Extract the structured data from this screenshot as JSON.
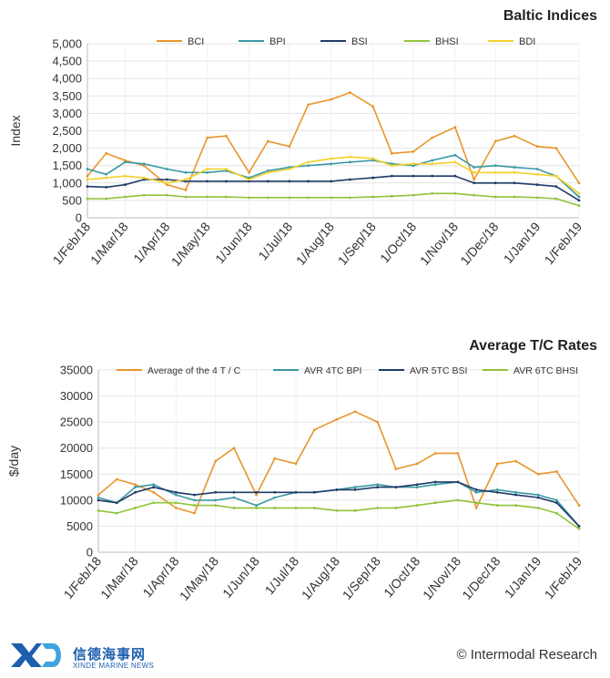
{
  "footer": {
    "logo_cn": "信德海事网",
    "logo_en": "XINDE MARINE NEWS",
    "credit": "© Intermodal Research"
  },
  "chart_data": [
    {
      "type": "line",
      "title": "Baltic Indices",
      "xlabel": "",
      "ylabel": "Index",
      "ylim": [
        0,
        5000
      ],
      "yticks": [
        0,
        500,
        1000,
        1500,
        2000,
        2500,
        3000,
        3500,
        4000,
        4500,
        5000
      ],
      "ytick_labels": [
        "0",
        "500",
        "1,000",
        "1,500",
        "2,000",
        "2,500",
        "3,000",
        "3,500",
        "4,000",
        "4,500",
        "5,000"
      ],
      "x": [
        "1/Feb/18",
        "15/Feb/18",
        "1/Mar/18",
        "15/Mar/18",
        "1/Apr/18",
        "15/Apr/18",
        "1/May/18",
        "15/May/18",
        "1/Jun/18",
        "15/Jun/18",
        "1/Jul/18",
        "15/Jul/18",
        "1/Aug/18",
        "15/Aug/18",
        "1/Sep/18",
        "15/Sep/18",
        "1/Oct/18",
        "15/Oct/18",
        "1/Nov/18",
        "15/Nov/18",
        "1/Dec/18",
        "15/Dec/18",
        "1/Jan/19",
        "15/Jan/19",
        "1/Feb/19"
      ],
      "xtick_labels": [
        "1/Feb/18",
        "1/Mar/18",
        "1/Apr/18",
        "1/May/18",
        "1/Jun/18",
        "1/Jul/18",
        "1/Aug/18",
        "1/Sep/18",
        "1/Oct/18",
        "1/Nov/18",
        "1/Dec/18",
        "1/Jan/19",
        "1/Feb/19"
      ],
      "legend_position": "top",
      "grid": true,
      "series": [
        {
          "name": "BCI",
          "color": "#e8952b",
          "values": [
            1200,
            1850,
            1650,
            1500,
            950,
            800,
            2300,
            2350,
            1300,
            2200,
            2050,
            3250,
            3400,
            3600,
            3200,
            1850,
            1900,
            2300,
            2600,
            1100,
            2200,
            2350,
            2050,
            2000,
            1000
          ]
        },
        {
          "name": "BPI",
          "color": "#3a99a5",
          "values": [
            1400,
            1250,
            1600,
            1550,
            1400,
            1300,
            1300,
            1350,
            1150,
            1350,
            1450,
            1500,
            1550,
            1600,
            1650,
            1550,
            1500,
            1650,
            1800,
            1450,
            1500,
            1450,
            1400,
            1200,
            600
          ]
        },
        {
          "name": "BSI",
          "color": "#1f3b68",
          "values": [
            900,
            880,
            950,
            1100,
            1100,
            1050,
            1050,
            1050,
            1050,
            1050,
            1050,
            1050,
            1050,
            1100,
            1150,
            1200,
            1200,
            1200,
            1200,
            1000,
            1000,
            1000,
            950,
            900,
            500
          ]
        },
        {
          "name": "BHSI",
          "color": "#8fc33a",
          "values": [
            550,
            550,
            600,
            650,
            650,
            600,
            600,
            600,
            580,
            580,
            580,
            580,
            580,
            580,
            600,
            620,
            650,
            700,
            700,
            650,
            600,
            600,
            580,
            550,
            350
          ]
        },
        {
          "name": "BDI",
          "color": "#f2d129",
          "values": [
            1100,
            1150,
            1200,
            1150,
            1000,
            1100,
            1400,
            1400,
            1100,
            1300,
            1400,
            1600,
            1700,
            1750,
            1700,
            1500,
            1550,
            1550,
            1600,
            1300,
            1300,
            1300,
            1250,
            1200,
            700
          ]
        }
      ]
    },
    {
      "type": "line",
      "title": "Average T/C Rates",
      "xlabel": "",
      "ylabel": "$/day",
      "ylim": [
        0,
        35000
      ],
      "yticks": [
        0,
        5000,
        10000,
        15000,
        20000,
        25000,
        30000,
        35000
      ],
      "ytick_labels": [
        "0",
        "5000",
        "10000",
        "15000",
        "20000",
        "25000",
        "30000",
        "35000"
      ],
      "x": [
        "1/Feb/18",
        "15/Feb/18",
        "1/Mar/18",
        "15/Mar/18",
        "1/Apr/18",
        "15/Apr/18",
        "1/May/18",
        "15/May/18",
        "1/Jun/18",
        "15/Jun/18",
        "1/Jul/18",
        "15/Jul/18",
        "1/Aug/18",
        "15/Aug/18",
        "1/Sep/18",
        "15/Sep/18",
        "1/Oct/18",
        "15/Oct/18",
        "1/Nov/18",
        "15/Nov/18",
        "1/Dec/18",
        "15/Dec/18",
        "1/Jan/19",
        "15/Jan/19",
        "1/Feb/19"
      ],
      "xtick_labels": [
        "1/Feb/18",
        "1/Mar/18",
        "1/Apr/18",
        "1/May/18",
        "1/Jun/18",
        "1/Jul/18",
        "1/Aug/18",
        "1/Sep/18",
        "1/Oct/18",
        "1/Nov/18",
        "1/Dec/18",
        "1/Jan/19",
        "1/Feb/19"
      ],
      "legend_position": "top",
      "grid": true,
      "series": [
        {
          "name": "Average of the 4 T / C",
          "color": "#e8952b",
          "values": [
            11000,
            14000,
            13000,
            11500,
            8500,
            7500,
            17500,
            20000,
            11000,
            18000,
            17000,
            23500,
            25500,
            27000,
            25000,
            16000,
            17000,
            19000,
            19000,
            8500,
            17000,
            17500,
            15000,
            15500,
            9000
          ]
        },
        {
          "name": "AVR 4TC BPI",
          "color": "#3a99a5",
          "values": [
            10500,
            9500,
            12500,
            13000,
            11000,
            10000,
            10000,
            10500,
            9000,
            10500,
            11500,
            11500,
            12000,
            12500,
            13000,
            12500,
            12500,
            13000,
            13500,
            11500,
            12000,
            11500,
            11000,
            10000,
            5000
          ]
        },
        {
          "name": "AVR 5TC BSI",
          "color": "#1f3b68",
          "values": [
            10000,
            9500,
            11500,
            12500,
            11500,
            11000,
            11500,
            11500,
            11500,
            11500,
            11500,
            11500,
            12000,
            12000,
            12500,
            12500,
            13000,
            13500,
            13500,
            12000,
            11500,
            11000,
            10500,
            9500,
            5000
          ]
        },
        {
          "name": "AVR 6TC BHSI",
          "color": "#8fc33a",
          "values": [
            8000,
            7500,
            8500,
            9500,
            9500,
            9000,
            9000,
            8500,
            8500,
            8500,
            8500,
            8500,
            8000,
            8000,
            8500,
            8500,
            9000,
            9500,
            10000,
            9500,
            9000,
            9000,
            8500,
            7500,
            4500
          ]
        }
      ]
    }
  ]
}
